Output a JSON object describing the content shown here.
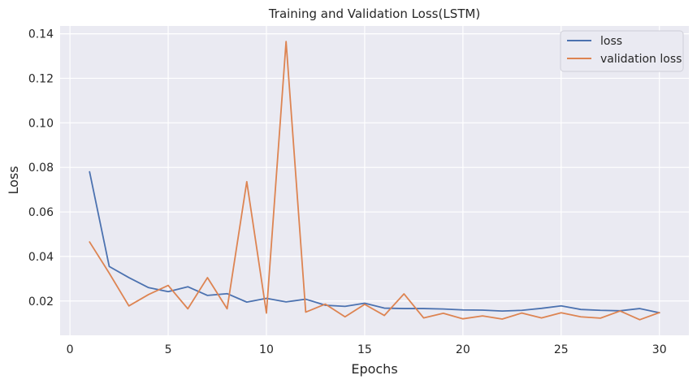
{
  "chart_data": {
    "type": "line",
    "title": "Training and Validation Loss(LSTM)",
    "xlabel": "Epochs",
    "ylabel": "Loss",
    "xlim": [
      -0.5,
      31.5
    ],
    "ylim": [
      0.0046,
      0.1435
    ],
    "xticks": [
      0,
      5,
      10,
      15,
      20,
      25,
      30
    ],
    "xtick_labels": [
      "0",
      "5",
      "10",
      "15",
      "20",
      "25",
      "30"
    ],
    "yticks": [
      0.02,
      0.04,
      0.06,
      0.08,
      0.1,
      0.12,
      0.14
    ],
    "ytick_labels": [
      "0.02",
      "0.04",
      "0.06",
      "0.08",
      "0.10",
      "0.12",
      "0.14"
    ],
    "grid": true,
    "legend_position": "top-right",
    "x": [
      1,
      2,
      3,
      4,
      5,
      6,
      7,
      8,
      9,
      10,
      11,
      12,
      13,
      14,
      15,
      16,
      17,
      18,
      19,
      20,
      21,
      22,
      23,
      24,
      25,
      26,
      27,
      28,
      29,
      30
    ],
    "series": [
      {
        "name": "loss",
        "color": "#4c72b0",
        "values": [
          0.078,
          0.0355,
          0.0305,
          0.026,
          0.0242,
          0.0264,
          0.0225,
          0.0233,
          0.0195,
          0.0212,
          0.0196,
          0.0208,
          0.0181,
          0.0176,
          0.019,
          0.0168,
          0.0166,
          0.0166,
          0.0164,
          0.016,
          0.0159,
          0.0155,
          0.0158,
          0.0167,
          0.0178,
          0.0162,
          0.0158,
          0.0156,
          0.0166,
          0.0147
        ]
      },
      {
        "name": "validation loss",
        "color": "#dd8452",
        "values": [
          0.0465,
          0.0325,
          0.0178,
          0.0229,
          0.027,
          0.0165,
          0.0305,
          0.0165,
          0.0736,
          0.0146,
          0.1365,
          0.015,
          0.0186,
          0.0129,
          0.0185,
          0.0135,
          0.0232,
          0.0124,
          0.0145,
          0.012,
          0.0133,
          0.0119,
          0.0146,
          0.0124,
          0.0147,
          0.0129,
          0.0123,
          0.0155,
          0.0116,
          0.0148
        ]
      }
    ]
  },
  "colors": {
    "plot_background": "#eaeaf2",
    "grid": "#ffffff",
    "text": "#262626"
  }
}
